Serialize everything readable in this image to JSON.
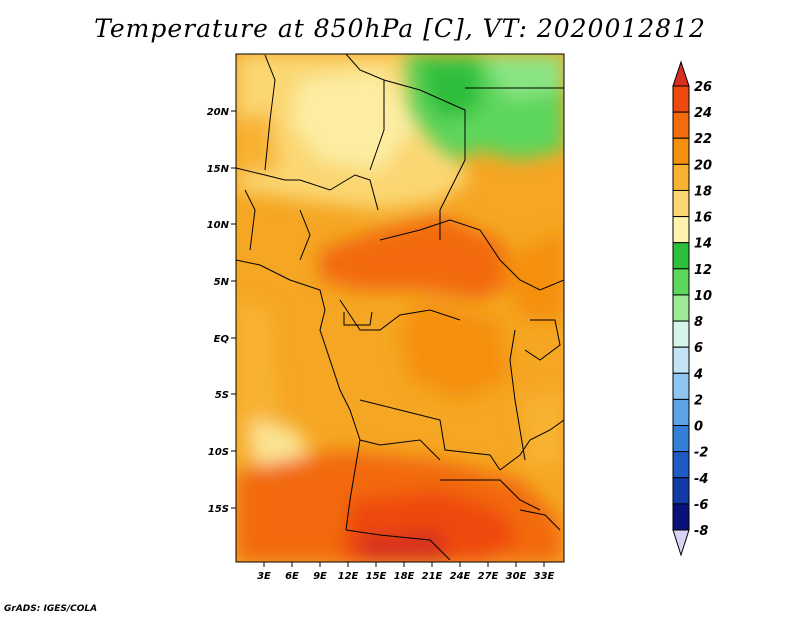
{
  "title": "Temperature at 850hPa [C], VT: 2020012812",
  "footer": "GrADS: IGES/COLA",
  "axes": {
    "lat_labels": [
      "20N",
      "15N",
      "10N",
      "5N",
      "EQ",
      "5S",
      "10S",
      "15S"
    ],
    "lon_labels": [
      "3E",
      "6E",
      "9E",
      "12E",
      "15E",
      "18E",
      "21E",
      "24E",
      "27E",
      "30E",
      "33E"
    ]
  },
  "colorbar": {
    "labels": [
      "26",
      "24",
      "22",
      "20",
      "18",
      "16",
      "14",
      "12",
      "10",
      "8",
      "6",
      "4",
      "2",
      "0",
      "-2",
      "-4",
      "-6",
      "-8"
    ],
    "colors": [
      "#d7301f",
      "#ef4a0d",
      "#f26b0d",
      "#f5900e",
      "#f8b231",
      "#fbd772",
      "#fdf2ae",
      "#2dbe3a",
      "#5dd65c",
      "#9eeb96",
      "#d6f5e8",
      "#c3e4f7",
      "#8ec6f1",
      "#5aa4e6",
      "#347fd8",
      "#1e5cc4",
      "#123ba6",
      "#08127a",
      "#d9d4f5"
    ]
  }
}
